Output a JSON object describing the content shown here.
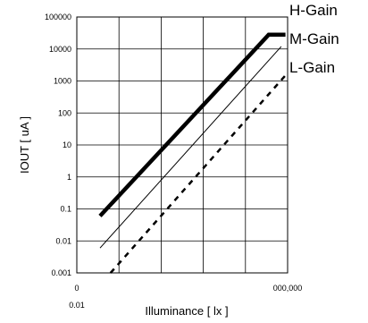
{
  "chart_data": {
    "type": "line",
    "x_scale": "log",
    "y_scale": "log",
    "grid": true,
    "legend": "series labels at top-right, outside plot area",
    "xlabel": "Illuminance [ lx ]",
    "ylabel": "IOUT [ uA ]",
    "x_tick_labels": [
      "0",
      "0.01",
      "000,000"
    ],
    "y_ticks": [
      0.001,
      0.01,
      0.1,
      1,
      10,
      100,
      1000,
      10000,
      100000
    ],
    "y_tick_labels": [
      "0.001",
      "0.01",
      "0.1",
      "1",
      "10",
      "100",
      "1000",
      "10000",
      "100000"
    ],
    "x_decades": 5,
    "ylim": [
      0.001,
      100000
    ],
    "series": [
      {
        "name": "H-Gain",
        "style": "thick-solid",
        "color": "#000000",
        "points": [
          {
            "xd": 0.55,
            "y": 0.06
          },
          {
            "xd": 4.55,
            "y": 28000
          },
          {
            "xd": 4.95,
            "y": 28000
          }
        ]
      },
      {
        "name": "M-Gain",
        "style": "thin-solid",
        "color": "#000000",
        "points": [
          {
            "xd": 0.55,
            "y": 0.006
          },
          {
            "xd": 4.85,
            "y": 12000
          }
        ]
      },
      {
        "name": "L-Gain",
        "style": "dashed",
        "color": "#000000",
        "points": [
          {
            "xd": 0.8,
            "y": 0.001
          },
          {
            "xd": 4.95,
            "y": 1500
          }
        ]
      }
    ]
  }
}
